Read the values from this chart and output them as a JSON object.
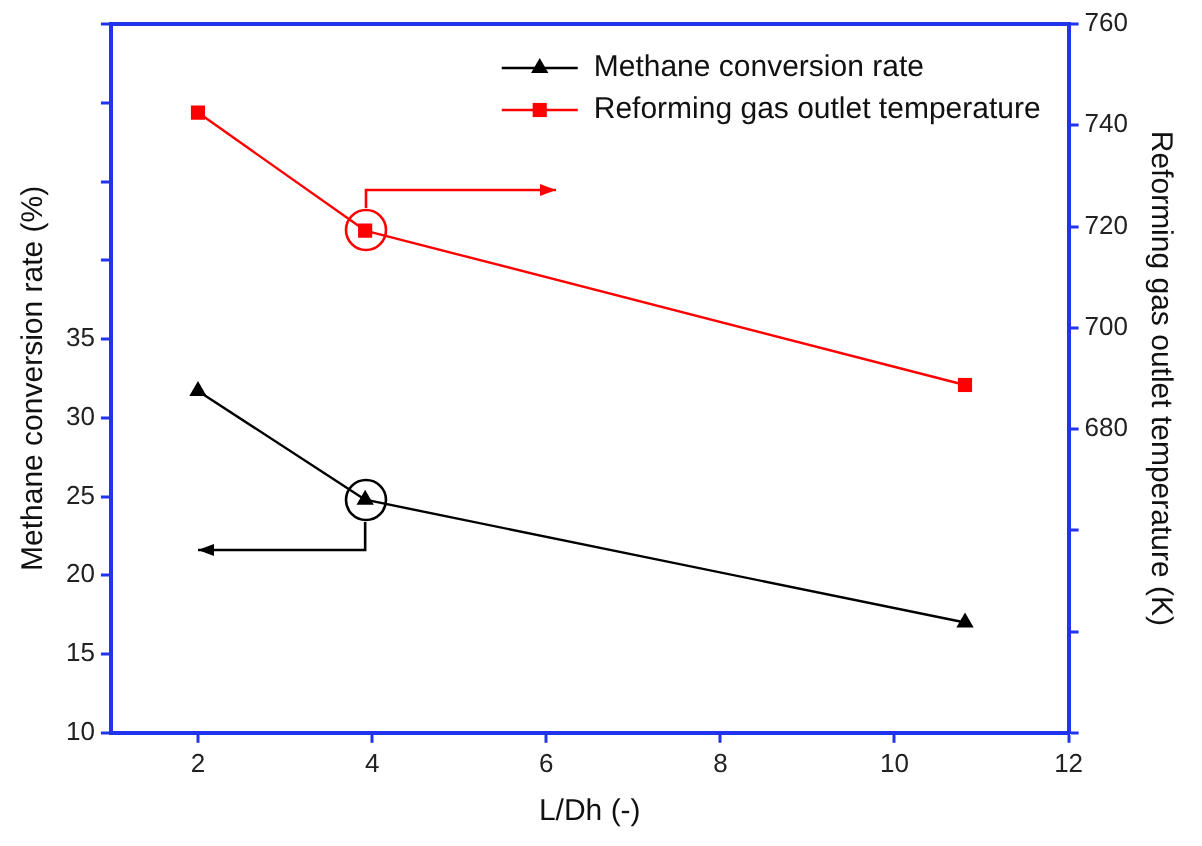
{
  "chart_data": {
    "type": "line",
    "xlabel": "L/Dh (-)",
    "ylabel": "Methane conversion rate (%)",
    "y2label": "Reforming gas outlet temperature (K)",
    "x": [
      2,
      3.92,
      10.81
    ],
    "xlim": [
      1,
      12
    ],
    "xticks": [
      2,
      4,
      6,
      8,
      10,
      12
    ],
    "ylim": [
      10,
      55
    ],
    "yticks": [
      10,
      15,
      20,
      25,
      30,
      35,
      {
        "value": 40,
        "label": null
      },
      {
        "value": 45,
        "label": null
      },
      {
        "value": 50,
        "label": null
      },
      {
        "value": 55,
        "label": null
      }
    ],
    "y2lim": [
      620,
      760
    ],
    "y2ticks": [
      {
        "value": 620,
        "label": null
      },
      {
        "value": 640,
        "label": null
      },
      {
        "value": 660,
        "label": null
      },
      680,
      700,
      720,
      740,
      760
    ],
    "series": [
      {
        "name": "Methane conversion rate",
        "color": "#000000",
        "values": [
          31.7,
          24.8,
          17.0
        ],
        "marker": "triangle"
      },
      {
        "name": "Reforming gas outlet temperature",
        "color": "#ff0000",
        "values": [
          742.5,
          719.2,
          688.7
        ],
        "axis": "y2",
        "marker": "square"
      }
    ],
    "grid": false,
    "legend": "top right",
    "line_style": "solid"
  }
}
